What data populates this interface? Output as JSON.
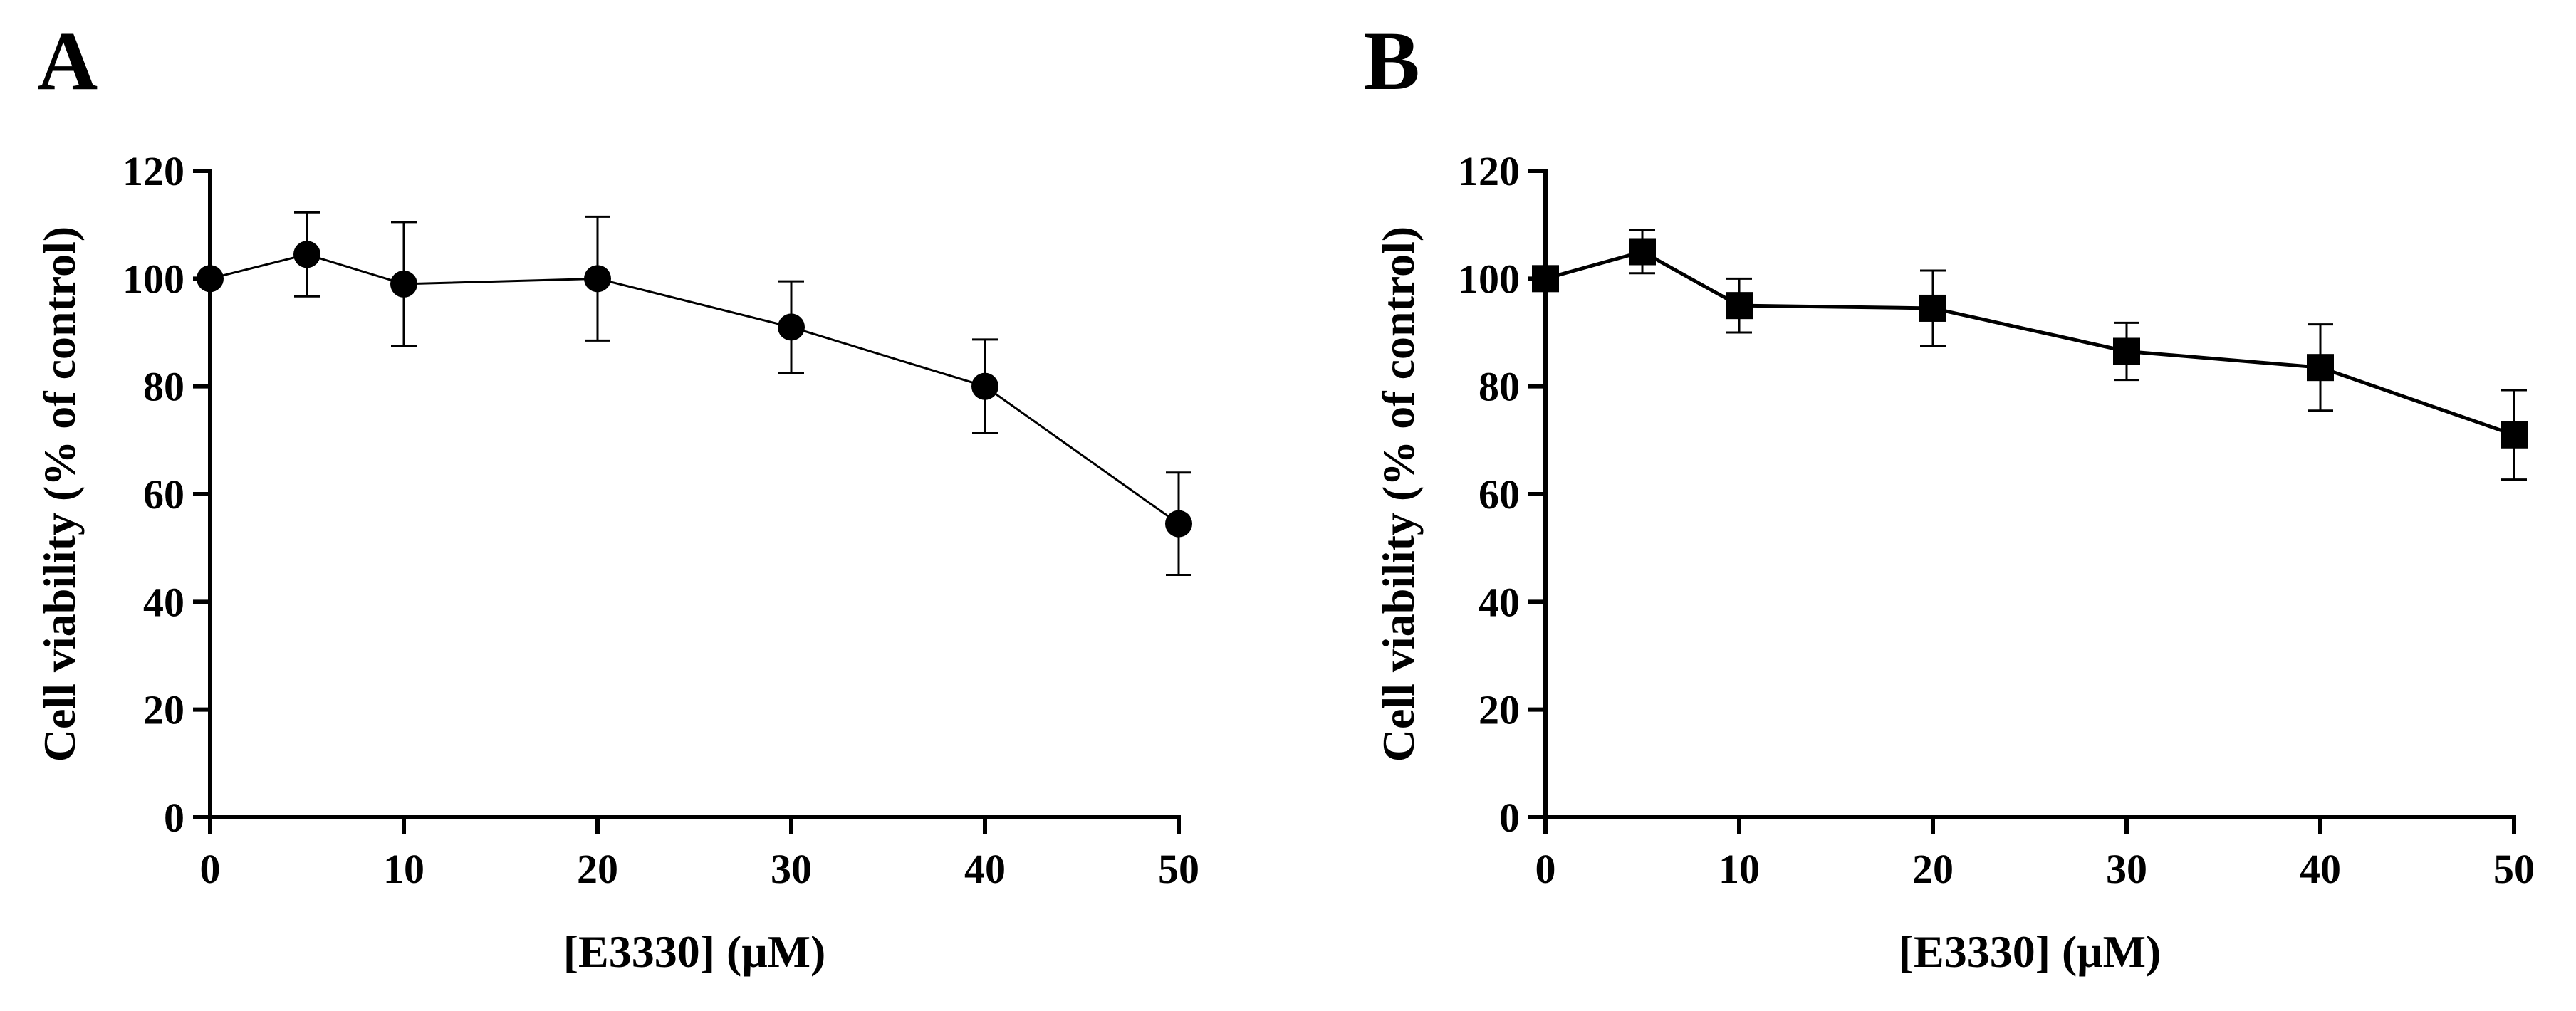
{
  "chart_data": [
    {
      "type": "line",
      "panel_label": "A",
      "title": "",
      "xlabel": "[E3330] (μM)",
      "ylabel": "Cell viability (% of control)",
      "xlim": [
        0,
        50
      ],
      "ylim": [
        0,
        120
      ],
      "xticks": [
        0,
        10,
        20,
        30,
        40,
        50
      ],
      "yticks": [
        0,
        20,
        40,
        60,
        80,
        100,
        120
      ],
      "marker": "circle",
      "grid": false,
      "legend": "none",
      "series": [
        {
          "name": "Cell viability",
          "x": [
            0,
            5,
            10,
            20,
            30,
            40,
            50
          ],
          "y": [
            100,
            104.5,
            99,
            100,
            91,
            80,
            54.5
          ],
          "error": [
            0,
            7.8,
            11.5,
            11.5,
            8.5,
            8.7,
            9.5
          ]
        }
      ]
    },
    {
      "type": "line",
      "panel_label": "B",
      "title": "",
      "xlabel": "[E3330] (μM)",
      "ylabel": "Cell viability (% of control)",
      "xlim": [
        0,
        50
      ],
      "ylim": [
        0,
        120
      ],
      "xticks": [
        0,
        10,
        20,
        30,
        40,
        50
      ],
      "yticks": [
        0,
        20,
        40,
        60,
        80,
        100,
        120
      ],
      "marker": "square",
      "grid": false,
      "legend": "none",
      "series": [
        {
          "name": "Cell viability",
          "x": [
            0,
            5,
            10,
            20,
            30,
            40,
            50
          ],
          "y": [
            100,
            105,
            95,
            94.5,
            86.5,
            83.5,
            71
          ],
          "error": [
            0,
            4,
            5,
            7,
            5.3,
            8,
            8.3
          ]
        }
      ]
    }
  ]
}
